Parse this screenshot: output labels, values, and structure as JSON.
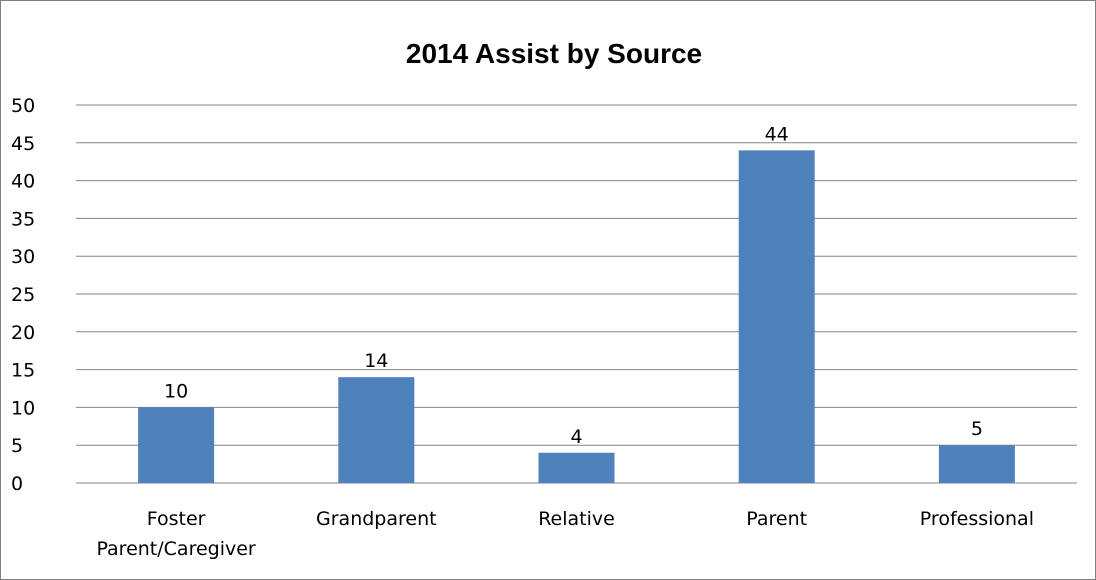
{
  "chart_data": {
    "type": "bar",
    "title": "2014 Assist by Source",
    "xlabel": "",
    "ylabel": "",
    "categories": [
      [
        "Foster",
        "Parent/Caregiver"
      ],
      [
        "Grandparent"
      ],
      [
        "Relative"
      ],
      [
        "Parent"
      ],
      [
        "Professional"
      ]
    ],
    "values": [
      10,
      14,
      4,
      44,
      5
    ],
    "data_labels": [
      "10",
      "14",
      "4",
      "44",
      "5"
    ],
    "ylim": [
      0,
      50
    ],
    "yticks": [
      "0",
      "5",
      "10",
      "15",
      "20",
      "25",
      "30",
      "35",
      "40",
      "45",
      "50"
    ],
    "grid": true,
    "legend": "none",
    "bar_color": "#4F81BD",
    "grid_color": "#868686"
  }
}
